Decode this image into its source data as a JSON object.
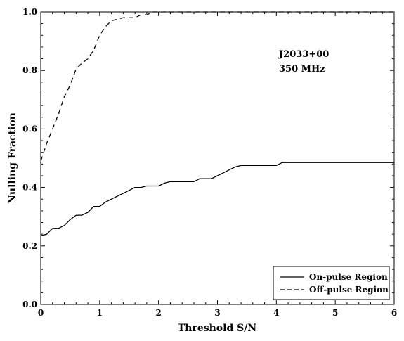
{
  "chart_data": {
    "type": "line",
    "xlabel": "Threshold S/N",
    "ylabel": "Nulling Fraction",
    "xlim": [
      0,
      6
    ],
    "ylim": [
      0,
      1.0
    ],
    "xticks": [
      "0",
      "1",
      "2",
      "3",
      "4",
      "5",
      "6"
    ],
    "yticks": [
      "0.0",
      "0.2",
      "0.4",
      "0.6",
      "0.8",
      "1.0"
    ],
    "annotations": [
      "J2033+00",
      "350 MHz"
    ],
    "legend_position": "bottom-right",
    "series": [
      {
        "name": "On-pulse Region",
        "style": "solid",
        "x": [
          0,
          0.1,
          0.2,
          0.3,
          0.4,
          0.5,
          0.6,
          0.7,
          0.8,
          0.9,
          1.0,
          1.1,
          1.2,
          1.3,
          1.4,
          1.5,
          1.6,
          1.7,
          1.8,
          1.9,
          2.0,
          2.1,
          2.2,
          2.3,
          2.4,
          2.5,
          2.6,
          2.7,
          2.8,
          2.9,
          3.0,
          3.1,
          3.2,
          3.3,
          3.4,
          3.5,
          3.6,
          3.7,
          3.8,
          3.9,
          4.0,
          4.1,
          4.5,
          5.0,
          5.5,
          6.0
        ],
        "y": [
          0.235,
          0.24,
          0.26,
          0.26,
          0.27,
          0.29,
          0.305,
          0.305,
          0.315,
          0.335,
          0.335,
          0.35,
          0.36,
          0.37,
          0.38,
          0.39,
          0.4,
          0.4,
          0.405,
          0.405,
          0.405,
          0.415,
          0.42,
          0.42,
          0.42,
          0.42,
          0.42,
          0.43,
          0.43,
          0.43,
          0.44,
          0.45,
          0.46,
          0.47,
          0.475,
          0.475,
          0.475,
          0.475,
          0.475,
          0.475,
          0.475,
          0.485,
          0.485,
          0.485,
          0.485,
          0.485
        ]
      },
      {
        "name": "Off-pulse Region",
        "style": "dashed",
        "x": [
          0,
          0.1,
          0.2,
          0.3,
          0.4,
          0.5,
          0.6,
          0.7,
          0.8,
          0.9,
          1.0,
          1.1,
          1.2,
          1.3,
          1.4,
          1.5,
          1.6,
          1.7,
          1.8,
          1.9,
          2.0,
          2.5,
          3.0,
          4.0,
          5.0,
          6.0
        ],
        "y": [
          0.49,
          0.55,
          0.6,
          0.65,
          0.71,
          0.75,
          0.805,
          0.825,
          0.84,
          0.87,
          0.92,
          0.95,
          0.97,
          0.975,
          0.98,
          0.98,
          0.98,
          0.99,
          0.99,
          1.0,
          1.0,
          1.0,
          1.0,
          1.0,
          1.0,
          1.0
        ]
      }
    ]
  }
}
